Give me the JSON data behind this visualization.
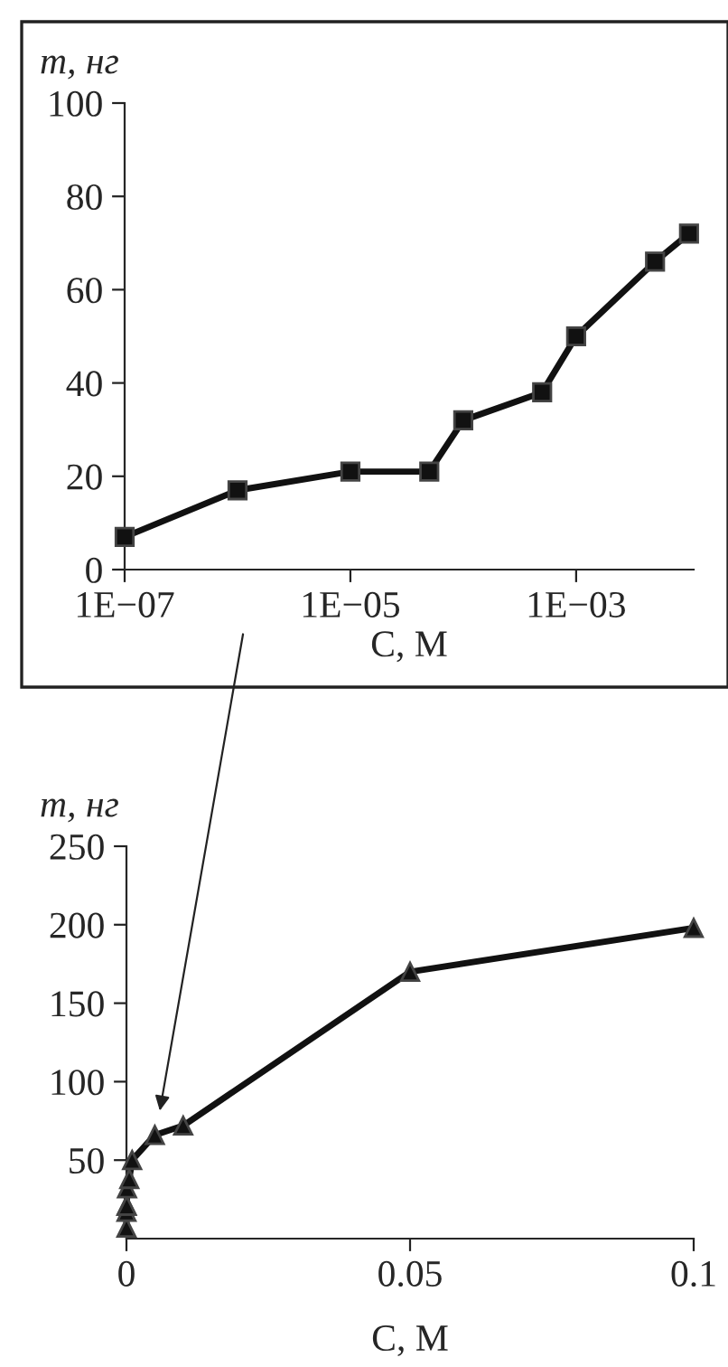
{
  "chart_data": [
    {
      "type": "line",
      "xlabel": "C, M",
      "ylabel": "m, нг",
      "log": "x",
      "marker": "square",
      "line_style": "solid",
      "grid": false,
      "legend": false,
      "xlim": [
        1e-07,
        0.011
      ],
      "xticks": [
        {
          "value": 1e-07,
          "label": "1E−07"
        },
        {
          "value": 1e-05,
          "label": "1E−05"
        },
        {
          "value": 0.001,
          "label": "1E−03"
        }
      ],
      "ylim": [
        0,
        100
      ],
      "yticks": [
        0,
        20,
        40,
        60,
        80,
        100
      ],
      "series": [
        {
          "color": "#111111",
          "x": [
            1e-07,
            1e-06,
            1e-05,
            5e-05,
            0.0001,
            0.0005,
            0.001,
            0.005,
            0.01
          ],
          "values": [
            7,
            17,
            21,
            21,
            32,
            38,
            50,
            66,
            72
          ]
        }
      ]
    },
    {
      "type": "line",
      "xlabel": "C, M",
      "ylabel": "m, нг",
      "marker": "triangle",
      "line_style": "solid",
      "grid": false,
      "legend": false,
      "xlim": [
        0,
        0.1
      ],
      "xticks": [
        0,
        0.05,
        0.1
      ],
      "ylim": [
        0,
        250
      ],
      "yticks": [
        50,
        100,
        150,
        200,
        250
      ],
      "series": [
        {
          "color": "#111111",
          "x": [
            1e-07,
            1e-06,
            1e-05,
            5e-05,
            0.0001,
            0.0005,
            0.001,
            0.005,
            0.01,
            0.05,
            0.1
          ],
          "values": [
            7,
            17,
            21,
            21,
            32,
            38,
            50,
            66,
            72,
            170,
            198
          ]
        }
      ]
    }
  ]
}
